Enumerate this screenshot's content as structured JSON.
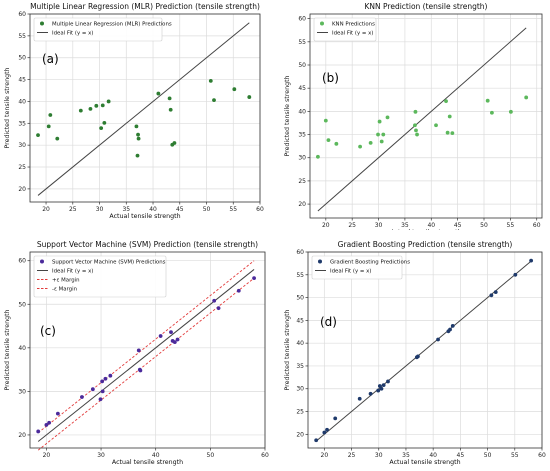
{
  "chart_data": [
    {
      "type": "scatter",
      "title": "Multiple Linear Regression (MLR) Prediction (tensile strength)",
      "panel_label": "(a)",
      "xlabel": "Actual tensile strength",
      "ylabel": "Predicted tensile strength",
      "xlim": [
        17,
        60
      ],
      "ylim": [
        17,
        60
      ],
      "xticks": [
        20,
        25,
        30,
        35,
        40,
        45,
        50,
        55,
        60
      ],
      "yticks": [
        20,
        25,
        30,
        35,
        40,
        45,
        50,
        55,
        60
      ],
      "grid": true,
      "legend_position": "top-left",
      "series": [
        {
          "name": "Multiple Linear Regression (MLR) Predictions",
          "kind": "points",
          "color": "#2e7d32",
          "x": [
            18.5,
            20.5,
            20.8,
            22.1,
            26.5,
            28.3,
            29.4,
            30.3,
            30.6,
            30.9,
            31.7,
            36.9,
            37.1,
            37.2,
            37.3,
            41.0,
            43.1,
            43.3,
            43.6,
            44.0,
            50.8,
            51.4,
            55.2,
            58.0
          ],
          "y": [
            32.3,
            34.3,
            36.9,
            31.5,
            37.9,
            38.3,
            39.0,
            33.9,
            39.1,
            35.1,
            40.0,
            34.3,
            27.6,
            32.4,
            31.5,
            41.8,
            40.7,
            38.1,
            30.1,
            30.5,
            44.7,
            40.3,
            42.8,
            41.0
          ]
        },
        {
          "name": "Ideal Fit (y = x)",
          "kind": "line",
          "color": "#444444",
          "x": [
            18.5,
            58.0
          ],
          "y": [
            18.5,
            58.0
          ]
        }
      ]
    },
    {
      "type": "scatter",
      "title": "KNN Prediction (tensile strength)",
      "panel_label": "(b)",
      "xlabel": "Actual tensile strength",
      "ylabel": "Predicted tensile strength",
      "xlim": [
        17,
        61
      ],
      "ylim": [
        17,
        61
      ],
      "xticks": [
        20,
        25,
        30,
        35,
        40,
        45,
        50,
        55,
        60
      ],
      "yticks": [
        20,
        25,
        30,
        35,
        40,
        45,
        50,
        55,
        60
      ],
      "grid": true,
      "legend_position": "top-left",
      "series": [
        {
          "name": "KNN Predictions",
          "kind": "points",
          "color": "#5cb85c",
          "x": [
            18.5,
            20.0,
            20.5,
            22.0,
            26.5,
            28.5,
            29.9,
            30.2,
            30.6,
            30.9,
            31.7,
            36.9,
            37.0,
            37.1,
            37.3,
            40.9,
            42.8,
            43.1,
            43.5,
            44.0,
            50.7,
            51.5,
            55.1,
            58.0
          ],
          "y": [
            30.2,
            38.0,
            33.8,
            33.0,
            32.4,
            33.2,
            35.0,
            37.8,
            33.5,
            35.0,
            38.7,
            37.0,
            39.9,
            35.9,
            35.0,
            37.0,
            42.2,
            35.4,
            38.9,
            35.3,
            42.3,
            39.7,
            39.9,
            43.0
          ]
        },
        {
          "name": "Ideal Fit (y = x)",
          "kind": "line",
          "color": "#444444",
          "x": [
            18.5,
            58.0
          ],
          "y": [
            18.5,
            58.0
          ]
        }
      ]
    },
    {
      "type": "scatter",
      "title": "Support Vector Machine (SVM) Prediction (tensile strength)",
      "panel_label": "(c)",
      "xlabel": "Actual tensile strength",
      "ylabel": "Predicted tensile strength",
      "xlim": [
        17,
        60
      ],
      "ylim": [
        17,
        62
      ],
      "xticks": [
        20,
        30,
        40,
        50,
        60
      ],
      "yticks": [
        20,
        30,
        40,
        50,
        60
      ],
      "grid": true,
      "legend_position": "top-left",
      "series": [
        {
          "name": "Support Vector Machine (SVM) Predictions",
          "kind": "points",
          "color": "#4b2a9b",
          "x": [
            18.5,
            20.0,
            20.5,
            22.1,
            26.5,
            28.5,
            29.9,
            30.2,
            30.3,
            30.8,
            31.7,
            36.9,
            37.1,
            37.2,
            40.9,
            42.8,
            43.1,
            43.5,
            44.0,
            50.7,
            51.5,
            55.2,
            58.0
          ],
          "y": [
            20.8,
            22.3,
            22.8,
            24.9,
            28.7,
            30.5,
            28.2,
            32.3,
            30.0,
            32.9,
            33.6,
            39.4,
            35.0,
            34.8,
            42.7,
            43.6,
            41.6,
            41.3,
            41.9,
            50.8,
            49.1,
            53.1,
            56.0
          ]
        },
        {
          "name": "Ideal Fit (y = x)",
          "kind": "line",
          "color": "#444444",
          "x": [
            18.5,
            58.0
          ],
          "y": [
            18.5,
            58.0
          ]
        },
        {
          "name": "+ε Margin",
          "kind": "dash",
          "color": "#e23b3b",
          "x": [
            18.5,
            58.0
          ],
          "y": [
            20.5,
            60.0
          ]
        },
        {
          "name": "-ε Margin",
          "kind": "dash",
          "color": "#e23b3b",
          "x": [
            18.5,
            58.0
          ],
          "y": [
            16.5,
            56.0
          ]
        }
      ]
    },
    {
      "type": "scatter",
      "title": "Gradient Boosting Prediction (tensile strength)",
      "panel_label": "(d)",
      "xlabel": "Actual tensile strength",
      "ylabel": "Predicted tensile strength",
      "xlim": [
        17,
        60
      ],
      "ylim": [
        17,
        60
      ],
      "xticks": [
        20,
        25,
        30,
        35,
        40,
        45,
        50,
        55,
        60
      ],
      "yticks": [
        20,
        25,
        30,
        35,
        40,
        45,
        50,
        55,
        60
      ],
      "grid": true,
      "legend_position": "top-left",
      "series": [
        {
          "name": "Gradient Boosting Predictions",
          "kind": "points",
          "color": "#1f3a6b",
          "x": [
            18.5,
            20.0,
            20.5,
            22.0,
            26.5,
            28.5,
            29.9,
            30.2,
            30.5,
            30.9,
            31.7,
            37.0,
            37.2,
            40.9,
            42.8,
            43.1,
            43.6,
            50.7,
            51.5,
            55.1,
            58.0
          ],
          "y": [
            18.7,
            20.4,
            21.0,
            23.5,
            27.8,
            28.9,
            29.6,
            30.6,
            30.0,
            30.8,
            31.6,
            36.9,
            37.1,
            40.8,
            42.6,
            43.0,
            43.8,
            50.5,
            51.2,
            55.0,
            58.1
          ]
        },
        {
          "name": "Ideal Fit (y = x)",
          "kind": "line",
          "color": "#444444",
          "x": [
            18.5,
            58.0
          ],
          "y": [
            18.5,
            58.0
          ]
        }
      ]
    }
  ]
}
